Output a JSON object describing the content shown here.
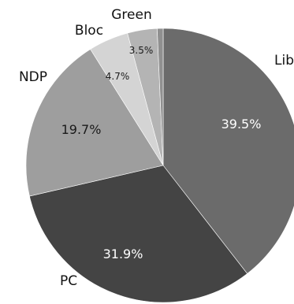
{
  "chart_data": {
    "type": "pie",
    "slices": [
      {
        "name": "Lib",
        "value": 39.5,
        "label": "39.5%",
        "color": "#6b6b6b"
      },
      {
        "name": "PC",
        "value": 31.9,
        "label": "31.9%",
        "color": "#444444"
      },
      {
        "name": "NDP",
        "value": 19.7,
        "label": "19.7%",
        "color": "#9e9e9e"
      },
      {
        "name": "Bloc",
        "value": 4.7,
        "label": "4.7%",
        "color": "#d4d4d4"
      },
      {
        "name": "Green",
        "value": 3.5,
        "label": "3.5%",
        "color": "#b4b4b4"
      },
      {
        "name": "",
        "value": 0.7,
        "label": "",
        "color": "#909090"
      }
    ],
    "start_angle": "top, clockwise",
    "title": "",
    "legend": "none"
  }
}
